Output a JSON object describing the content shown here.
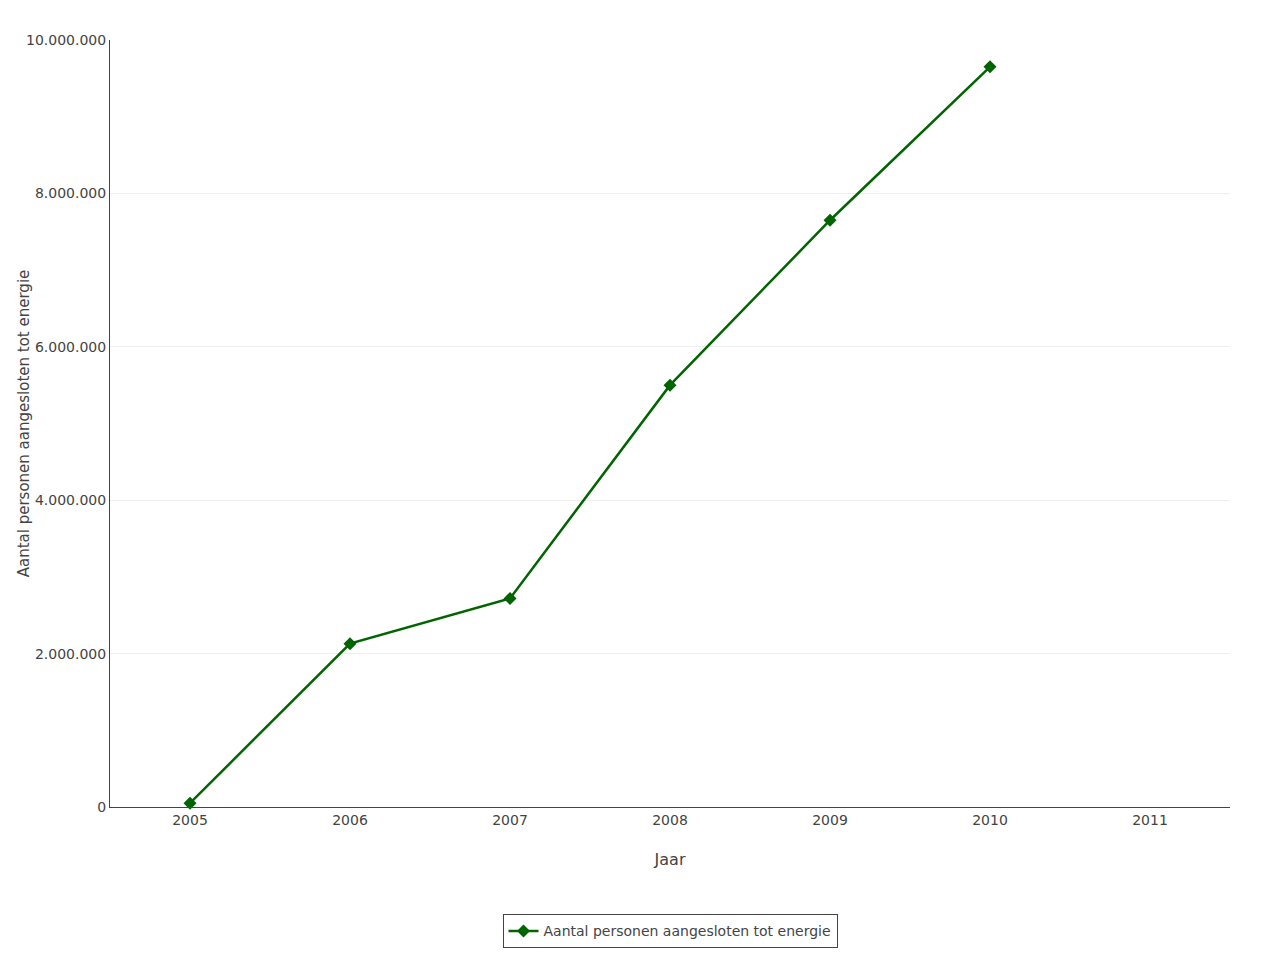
{
  "chart_data": {
    "type": "line",
    "x": [
      2005,
      2006,
      2007,
      2008,
      2009,
      2010
    ],
    "series": [
      {
        "name": "Aantal personen aangesloten tot energie",
        "color": "#006400",
        "marker": "diamond",
        "values": [
          50000,
          2130000,
          2720000,
          5500000,
          7650000,
          9650000
        ]
      }
    ],
    "x_label": "Jaar",
    "y_label": "Aantal personen aangesloten tot energie",
    "xlim": [
      2004.5,
      2011.5
    ],
    "xticks": [
      2005,
      2006,
      2007,
      2008,
      2009,
      2010,
      2011
    ],
    "ylim": [
      0,
      10000000
    ],
    "yticks": [
      0,
      {
        "value": 2000000,
        "label": "2.000.000"
      },
      {
        "value": 4000000,
        "label": "4.000.000"
      },
      {
        "value": 6000000,
        "label": "6.000.000"
      },
      {
        "value": 8000000,
        "label": "8.000.000"
      },
      {
        "value": 10000000,
        "label": "10.000.000"
      }
    ],
    "grid": "y",
    "legend": "bottom"
  }
}
